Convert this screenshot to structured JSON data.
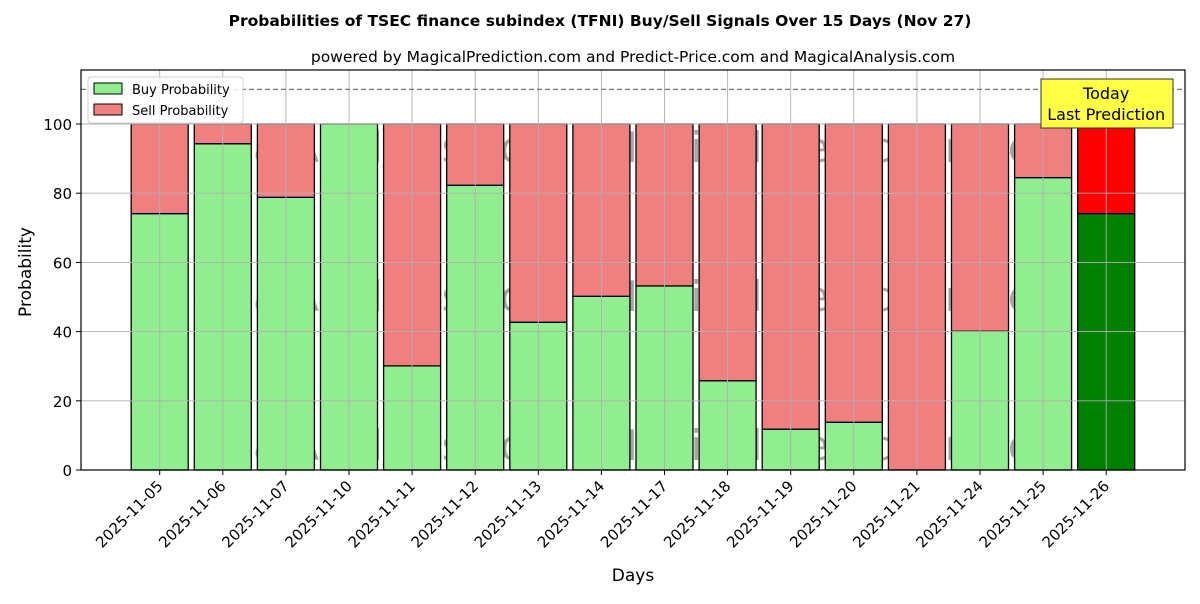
{
  "title": "Probabilities of TSEC finance subindex (TFNI) Buy/Sell Signals Over 15 Days (Nov 27)",
  "subtitle": "powered by MagicalPrediction.com and Predict-Price.com and MagicalAnalysis.com",
  "watermarks": [
    "MagicalAnalysis.com",
    "MagicalPrediction.com"
  ],
  "annotation": {
    "line1": "Today",
    "line2": "Last Prediction",
    "bg": "#ffff44"
  },
  "colors": {
    "buy": "#90ee90",
    "sell": "#f08080",
    "today_buy": "#008000",
    "today_sell": "#ff0000"
  },
  "chart_data": {
    "type": "bar",
    "stacked": true,
    "title": "Probabilities of TSEC finance subindex (TFNI) Buy/Sell Signals Over 15 Days (Nov 27)",
    "subtitle": "powered by MagicalPrediction.com and Predict-Price.com and MagicalAnalysis.com",
    "xlabel": "Days",
    "ylabel": "Probability",
    "ylim": [
      0,
      115
    ],
    "yticks": [
      0,
      20,
      40,
      60,
      80,
      100
    ],
    "grid": true,
    "reference_line": {
      "y": 110,
      "style": "dashed"
    },
    "legend": {
      "position": "upper left",
      "entries": [
        "Buy Probability",
        "Sell Probability"
      ]
    },
    "categories": [
      "2025-11-05",
      "2025-11-06",
      "2025-11-07",
      "2025-11-10",
      "2025-11-11",
      "2025-11-12",
      "2025-11-13",
      "2025-11-14",
      "2025-11-17",
      "2025-11-18",
      "2025-11-19",
      "2025-11-20",
      "2025-11-21",
      "2025-11-24",
      "2025-11-25",
      "2025-11-26"
    ],
    "series": [
      {
        "name": "Buy Probability",
        "values": [
          74.1,
          94.3,
          78.8,
          100,
          30.1,
          82.3,
          42.7,
          50.2,
          53.2,
          25.8,
          11.8,
          13.8,
          0,
          40.1,
          84.5,
          74.1
        ]
      },
      {
        "name": "Sell Probability",
        "values": [
          25.9,
          5.7,
          21.2,
          0,
          69.9,
          17.7,
          57.3,
          49.8,
          46.8,
          74.2,
          88.2,
          86.2,
          100,
          59.9,
          15.5,
          25.9
        ]
      }
    ],
    "highlight_last": true,
    "annotations": [
      {
        "text": "Today\nLast Prediction",
        "x": "2025-11-26"
      }
    ]
  }
}
